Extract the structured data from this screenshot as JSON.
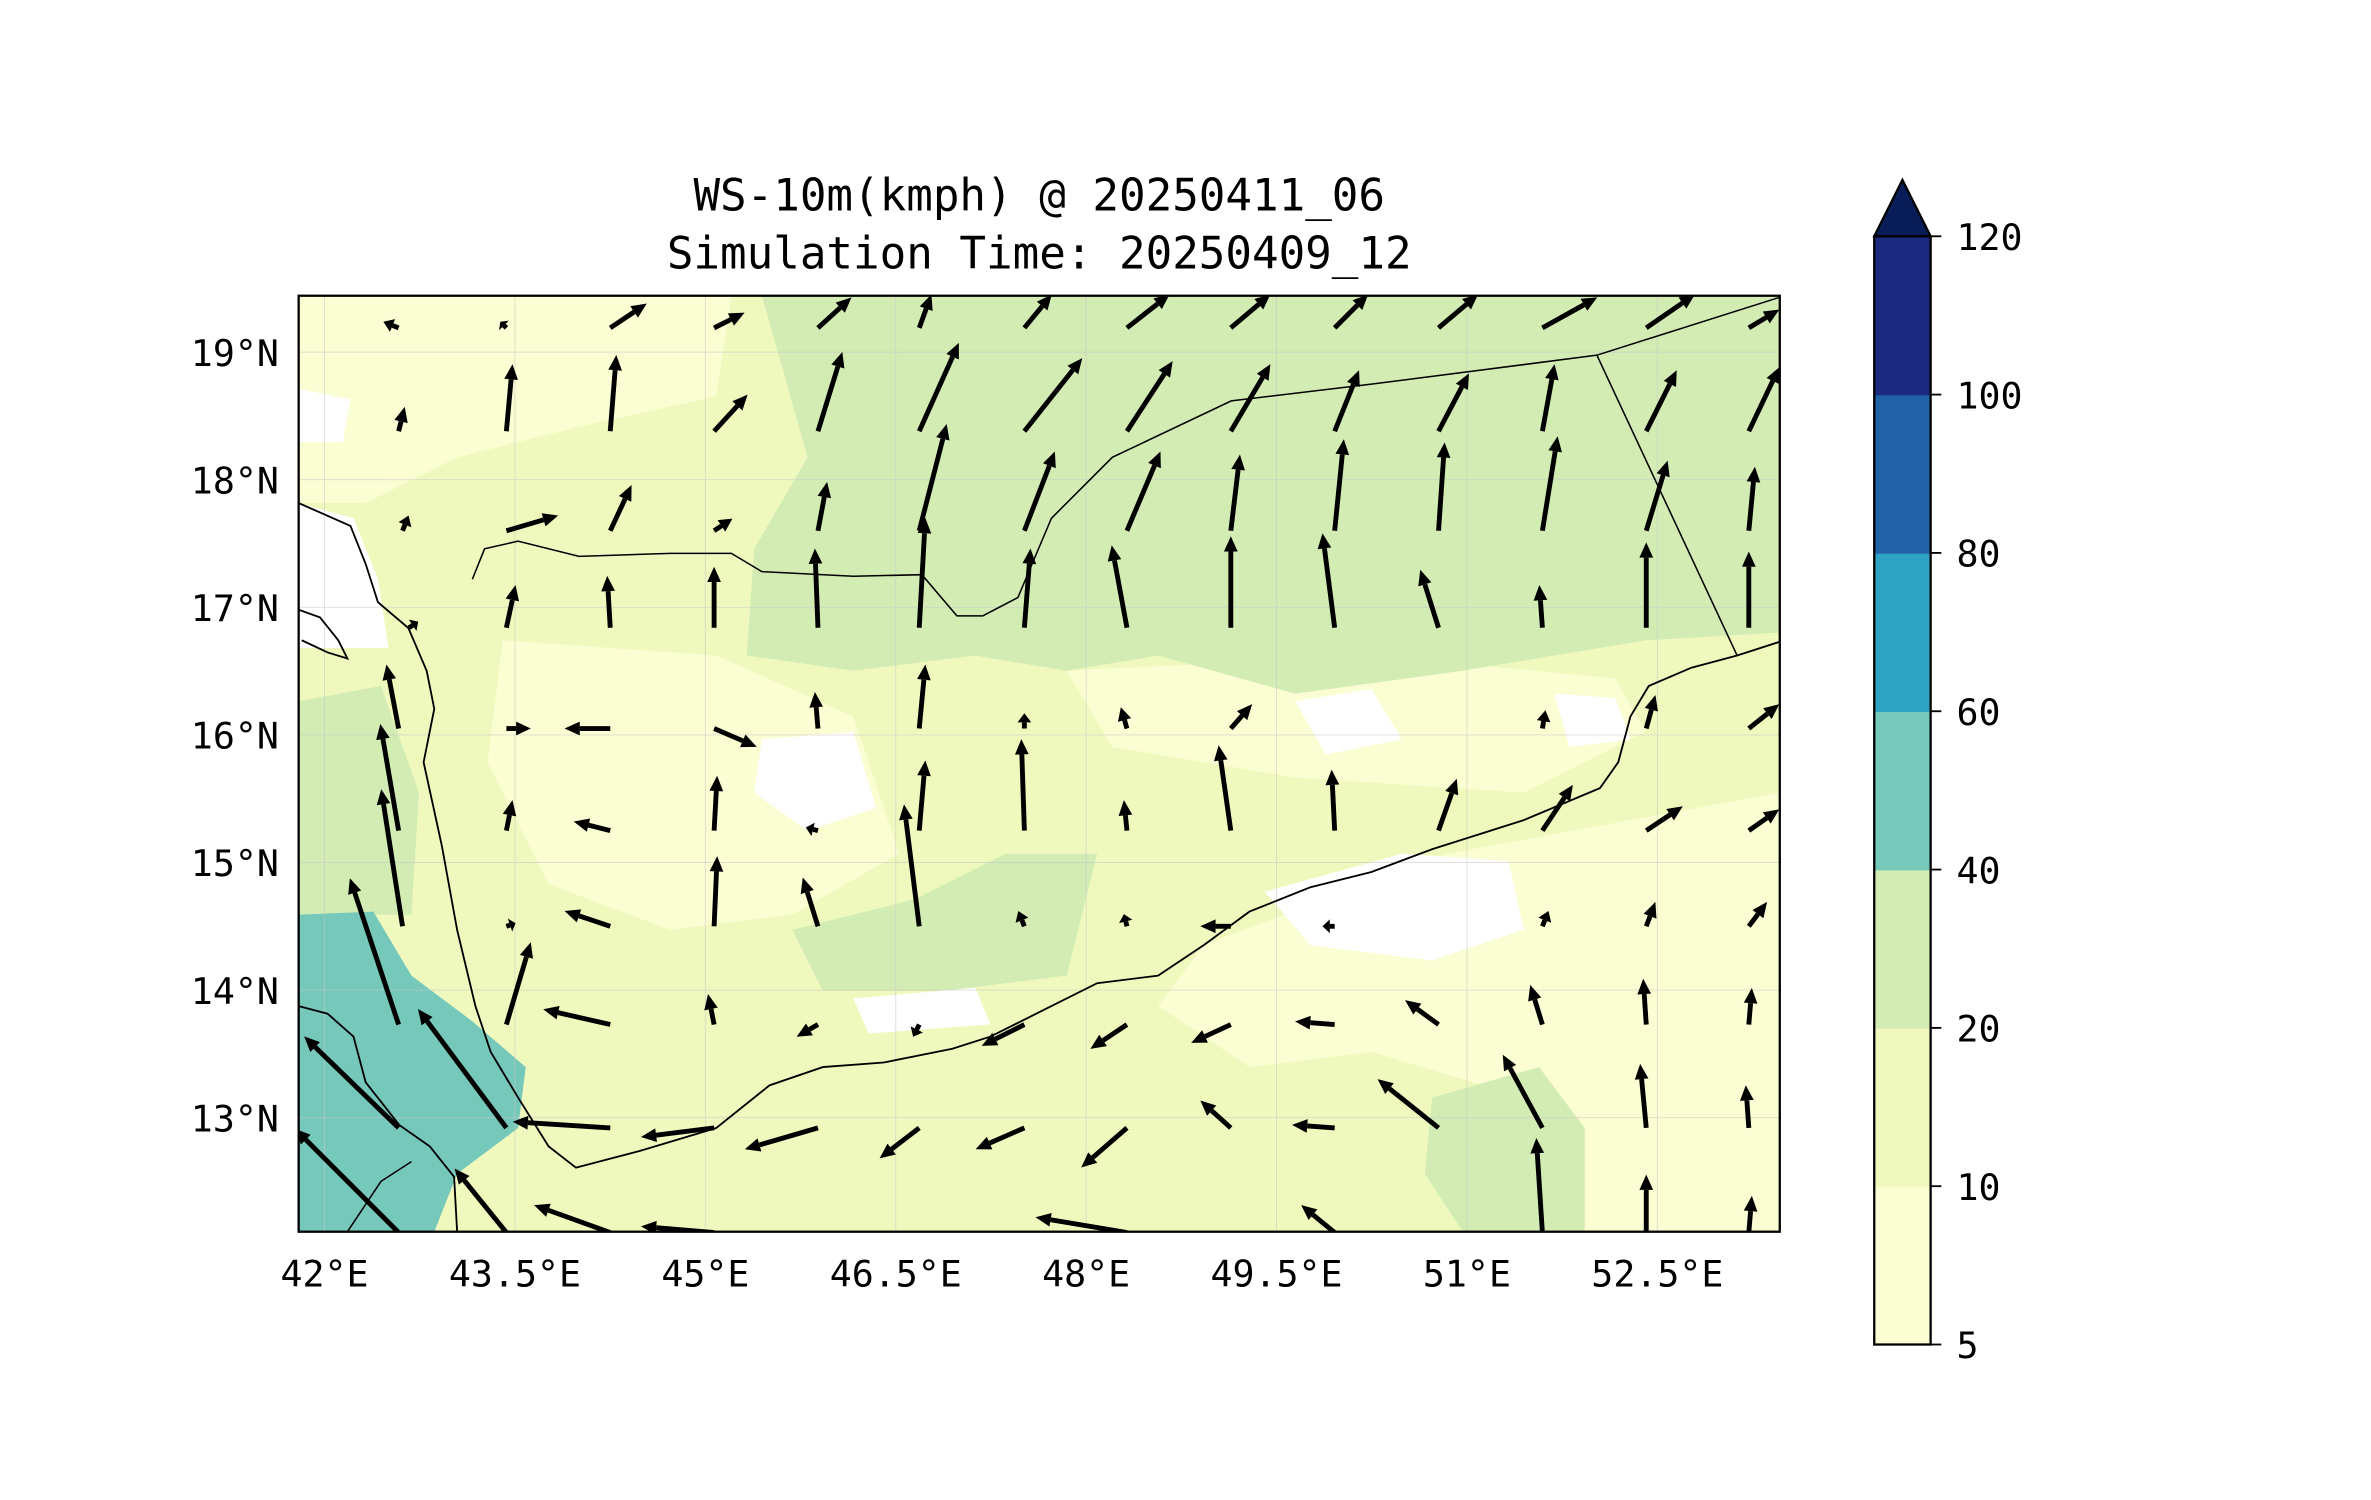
{
  "chart_data": {
    "type": "map-contour-quiver",
    "title": "WS-10m(kmph) @ 20250411_06",
    "subtitle": "Simulation Time: 20250409_12",
    "x_ticks": [
      {
        "value": 42,
        "label": "42°E"
      },
      {
        "value": 43.5,
        "label": "43.5°E"
      },
      {
        "value": 45,
        "label": "45°E"
      },
      {
        "value": 46.5,
        "label": "46.5°E"
      },
      {
        "value": 48,
        "label": "48°E"
      },
      {
        "value": 49.5,
        "label": "49.5°E"
      },
      {
        "value": 51,
        "label": "51°E"
      },
      {
        "value": 52.5,
        "label": "52.5°E"
      }
    ],
    "y_ticks": [
      {
        "value": 19,
        "label": "19°N"
      },
      {
        "value": 18,
        "label": "18°N"
      },
      {
        "value": 17,
        "label": "17°N"
      },
      {
        "value": 16,
        "label": "16°N"
      },
      {
        "value": 15,
        "label": "15°N"
      },
      {
        "value": 14,
        "label": "14°N"
      },
      {
        "value": 13,
        "label": "13°N"
      }
    ],
    "lon_range": [
      41.8,
      53.45
    ],
    "lat_range": [
      12.1,
      19.45
    ],
    "colorbar": {
      "levels": [
        5,
        10,
        20,
        40,
        60,
        80,
        100,
        120
      ],
      "labels": [
        "5",
        "10",
        "20",
        "40",
        "60",
        "80",
        "100",
        "120"
      ],
      "colors": [
        "#fbfdd2",
        "#eff9bd",
        "#d2ecb4",
        "#76c8bb",
        "#2ea3c4",
        "#2262a8",
        "#1c2b80"
      ],
      "extend_color": "#081d58",
      "extend": "max"
    },
    "wind_vectors": [
      {
        "lat": 19.19,
        "v": [
          [
            42.77,
            -5,
            2
          ],
          [
            43.6,
            -2,
            2
          ],
          [
            44.4,
            12,
            8
          ],
          [
            45.2,
            10,
            5
          ],
          [
            46.0,
            11,
            10
          ],
          [
            46.78,
            4,
            11
          ],
          [
            47.59,
            9,
            11
          ],
          [
            48.38,
            14,
            11
          ],
          [
            49.18,
            13,
            11
          ],
          [
            49.98,
            11,
            11
          ],
          [
            50.78,
            13,
            11
          ],
          [
            51.58,
            18,
            10
          ],
          [
            52.38,
            16,
            11
          ],
          [
            53.17,
            10,
            6
          ]
        ]
      },
      {
        "lat": 18.38,
        "v": [
          [
            42.77,
            2,
            8
          ],
          [
            43.6,
            2,
            22
          ],
          [
            44.4,
            2,
            25
          ],
          [
            45.2,
            11,
            12
          ],
          [
            46.0,
            8,
            26
          ],
          [
            46.78,
            13,
            29
          ],
          [
            47.59,
            19,
            24
          ],
          [
            48.38,
            15,
            23
          ],
          [
            49.18,
            13,
            22
          ],
          [
            49.98,
            8,
            20
          ],
          [
            50.78,
            10,
            19
          ],
          [
            51.58,
            4,
            22
          ],
          [
            52.38,
            10,
            20
          ],
          [
            53.17,
            10,
            21
          ]
        ]
      },
      {
        "lat": 17.6,
        "v": [
          [
            42.8,
            2,
            5
          ],
          [
            43.6,
            17,
            5
          ],
          [
            44.4,
            7,
            15
          ],
          [
            45.2,
            6,
            4
          ],
          [
            46.0,
            3,
            16
          ],
          [
            46.78,
            9,
            35
          ],
          [
            47.59,
            10,
            26
          ],
          [
            48.38,
            11,
            26
          ],
          [
            49.18,
            3,
            25
          ],
          [
            49.98,
            3,
            30
          ],
          [
            50.78,
            2,
            29
          ],
          [
            51.58,
            5,
            31
          ],
          [
            52.38,
            7,
            23
          ],
          [
            53.17,
            2,
            21
          ]
        ]
      },
      {
        "lat": 16.84,
        "v": [
          [
            42.85,
            3,
            2
          ],
          [
            43.6,
            3,
            14
          ],
          [
            44.4,
            -1,
            17
          ],
          [
            45.2,
            0,
            20
          ],
          [
            46.0,
            -1,
            26
          ],
          [
            46.78,
            2,
            36
          ],
          [
            47.59,
            2,
            26
          ],
          [
            48.38,
            -5,
            27
          ],
          [
            49.18,
            0,
            30
          ],
          [
            49.98,
            -4,
            31
          ],
          [
            50.78,
            -6,
            19
          ],
          [
            51.58,
            -1,
            14
          ],
          [
            52.38,
            0,
            28
          ],
          [
            53.17,
            0,
            25
          ]
        ]
      },
      {
        "lat": 16.05,
        "v": [
          [
            42.77,
            -4,
            21
          ],
          [
            43.6,
            8,
            0
          ],
          [
            44.4,
            -15,
            0
          ],
          [
            45.2,
            14,
            -6
          ],
          [
            46.0,
            -1,
            12
          ],
          [
            46.78,
            2,
            21
          ],
          [
            47.59,
            0,
            5
          ],
          [
            48.38,
            -2,
            7
          ],
          [
            49.18,
            7,
            8
          ],
          [
            51.58,
            1,
            6
          ],
          [
            52.38,
            3,
            11
          ],
          [
            53.17,
            10,
            8
          ]
        ]
      },
      {
        "lat": 15.25,
        "v": [
          [
            42.77,
            -6,
            35
          ],
          [
            43.6,
            2,
            10
          ],
          [
            44.4,
            -12,
            3
          ],
          [
            45.2,
            1,
            18
          ],
          [
            46.0,
            -4,
            1
          ],
          [
            46.78,
            2,
            23
          ],
          [
            47.59,
            -1,
            30
          ],
          [
            48.38,
            -1,
            10
          ],
          [
            49.18,
            -4,
            28
          ],
          [
            49.98,
            -1,
            20
          ],
          [
            50.78,
            6,
            17
          ],
          [
            51.58,
            10,
            15
          ],
          [
            52.38,
            12,
            8
          ],
          [
            53.17,
            10,
            7
          ]
        ]
      },
      {
        "lat": 14.5,
        "v": [
          [
            42.8,
            -7,
            45
          ],
          [
            43.6,
            3,
            1
          ],
          [
            44.4,
            -15,
            5
          ],
          [
            45.2,
            1,
            23
          ],
          [
            46.0,
            -5,
            16
          ],
          [
            46.78,
            -5,
            40
          ],
          [
            47.59,
            -2,
            5
          ],
          [
            48.38,
            -1,
            4
          ],
          [
            49.18,
            -10,
            0
          ],
          [
            49.98,
            -4,
            0
          ],
          [
            51.58,
            2,
            5
          ],
          [
            52.38,
            3,
            8
          ],
          [
            53.17,
            6,
            8
          ]
        ]
      },
      {
        "lat": 13.73,
        "v": [
          [
            42.77,
            -16,
            48
          ],
          [
            43.6,
            8,
            27
          ],
          [
            44.4,
            -22,
            5
          ],
          [
            45.2,
            -2,
            10
          ],
          [
            46.0,
            -7,
            -4
          ],
          [
            46.78,
            -2,
            -4
          ],
          [
            47.59,
            -14,
            -7
          ],
          [
            48.38,
            -12,
            -8
          ],
          [
            49.18,
            -13,
            -6
          ],
          [
            49.98,
            -13,
            1
          ],
          [
            50.78,
            -11,
            8
          ],
          [
            51.58,
            -4,
            13
          ],
          [
            52.38,
            -1,
            15
          ],
          [
            53.17,
            1,
            12
          ]
        ]
      },
      {
        "lat": 12.92,
        "v": [
          [
            42.77,
            -31,
            30
          ],
          [
            43.6,
            -29,
            39
          ],
          [
            44.4,
            -32,
            2
          ],
          [
            45.2,
            -24,
            -3
          ],
          [
            46.0,
            -24,
            -7
          ],
          [
            46.78,
            -13,
            -10
          ],
          [
            47.59,
            -16,
            -7
          ],
          [
            48.38,
            -15,
            -13
          ],
          [
            49.18,
            -10,
            9
          ],
          [
            49.98,
            -14,
            1
          ],
          [
            50.78,
            -20,
            16
          ],
          [
            51.58,
            -13,
            24
          ],
          [
            52.38,
            -2,
            21
          ],
          [
            53.17,
            -1,
            14
          ]
        ]
      },
      {
        "lat": 12.1,
        "v": [
          [
            42.77,
            -34,
            34
          ],
          [
            43.6,
            -17,
            21
          ],
          [
            44.4,
            -25,
            9
          ],
          [
            45.2,
            -24,
            2
          ],
          [
            48.38,
            -30,
            5
          ],
          [
            49.98,
            -11,
            9
          ],
          [
            51.58,
            -2,
            31
          ],
          [
            52.38,
            0,
            19
          ],
          [
            53.17,
            1,
            12
          ]
        ]
      }
    ]
  }
}
